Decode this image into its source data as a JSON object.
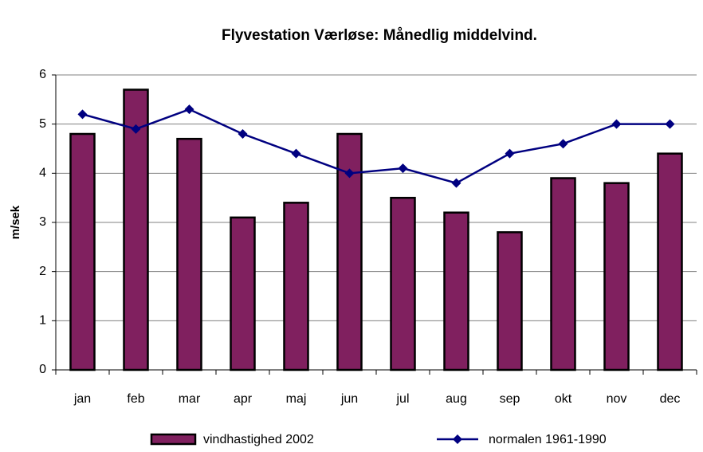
{
  "chart_data": {
    "type": "bar",
    "title": "Flyvestation Værløse: Månedlig middelvind.",
    "y_label": "m/sek",
    "categories": [
      "jan",
      "feb",
      "mar",
      "apr",
      "maj",
      "jun",
      "jul",
      "aug",
      "sep",
      "okt",
      "nov",
      "dec"
    ],
    "series": [
      {
        "name": "vindhastighed 2002",
        "type": "bar",
        "color": "#80205f",
        "values": [
          4.8,
          5.7,
          4.7,
          3.1,
          3.4,
          4.8,
          3.5,
          3.2,
          2.8,
          3.9,
          3.8,
          4.4
        ]
      },
      {
        "name": "normalen 1961-1990",
        "type": "line",
        "color": "#000080",
        "values": [
          5.2,
          4.9,
          5.3,
          4.8,
          4.4,
          4.0,
          4.1,
          3.8,
          4.4,
          4.6,
          5.0,
          5.0
        ]
      }
    ],
    "ylim": [
      0,
      6
    ],
    "yticks": [
      0,
      1,
      2,
      3,
      4,
      5,
      6
    ],
    "grid": true,
    "legend": "bottom"
  }
}
